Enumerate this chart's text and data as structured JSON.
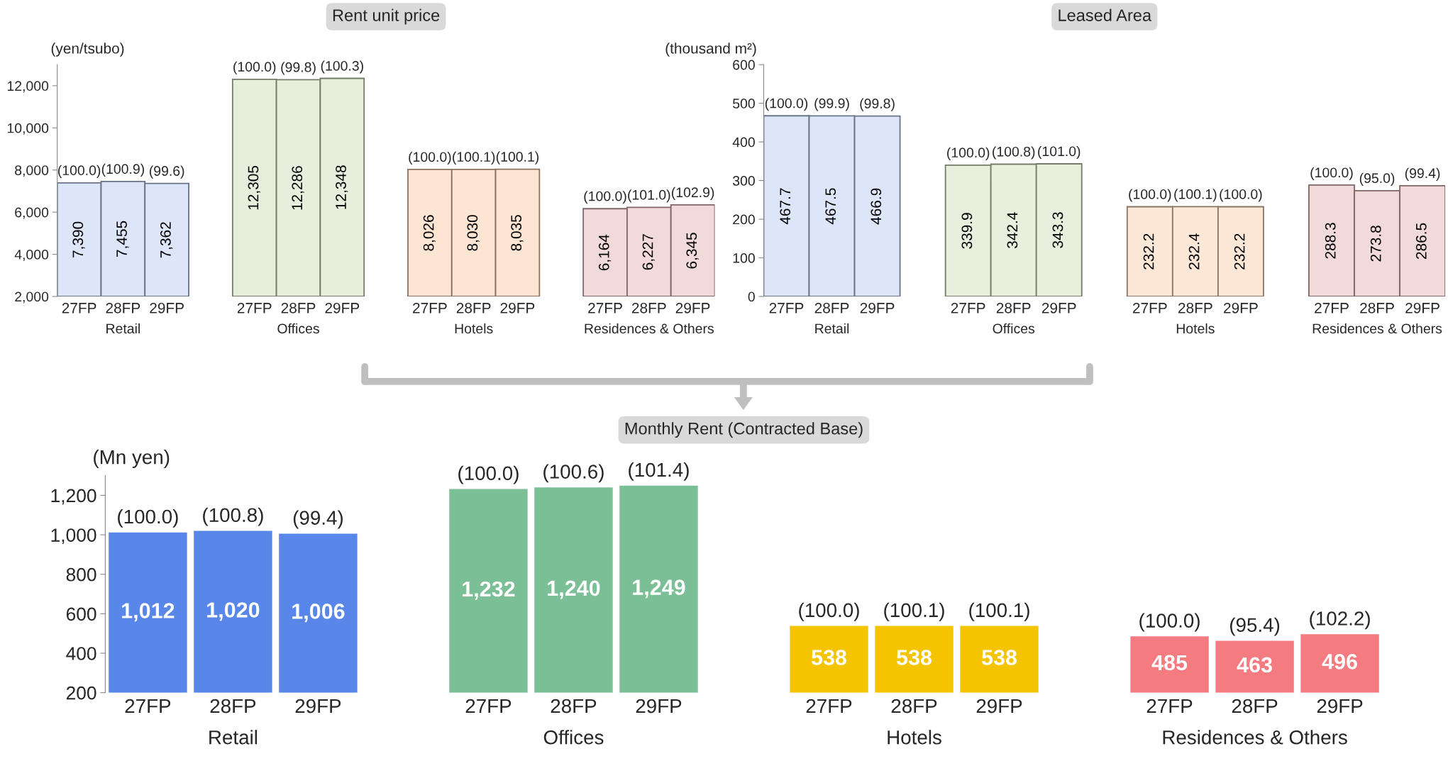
{
  "chart_data": [
    {
      "type": "bar",
      "title": "Rent unit price",
      "ylabel": "(yen/tsubo)",
      "categories": [
        "27FP",
        "28FP",
        "29FP",
        null,
        "27FP",
        "28FP",
        "29FP",
        null,
        "27FP",
        "28FP",
        "29FP",
        null,
        "27FP",
        "28FP",
        "29FP"
      ],
      "ylim": [
        2000,
        13000
      ],
      "yticks": [
        {
          "value": 2000,
          "label": "2,000"
        },
        {
          "value": 4000,
          "label": "4,000"
        },
        {
          "value": 6000,
          "label": "6,000"
        },
        {
          "value": 8000,
          "label": "8,000"
        },
        {
          "value": 10000,
          "label": "10,000"
        },
        {
          "value": 12000,
          "label": "12,000"
        }
      ],
      "series": [
        {
          "name": "Retail",
          "color": "#dde5f9",
          "values": [
            7390,
            7455,
            7362,
            null,
            null,
            null,
            null,
            null,
            null,
            null,
            null,
            null,
            null,
            null,
            null
          ],
          "value_labels": [
            "7,390",
            "7,455",
            "7,362",
            null,
            null,
            null,
            null,
            null,
            null,
            null,
            null,
            null,
            null,
            null,
            null
          ]
        },
        {
          "name": "Offices",
          "color": "#e7efdc",
          "values": [
            null,
            null,
            null,
            null,
            12305,
            12286,
            12348,
            null,
            null,
            null,
            null,
            null,
            null,
            null,
            null
          ],
          "value_labels": [
            null,
            null,
            null,
            null,
            "12,305",
            "12,286",
            "12,348",
            null,
            null,
            null,
            null,
            null,
            null,
            null,
            null
          ]
        },
        {
          "name": "Hotels",
          "color": "#fde5d3",
          "values": [
            null,
            null,
            null,
            null,
            null,
            null,
            null,
            null,
            8026,
            8030,
            8035,
            null,
            null,
            null,
            null
          ],
          "value_labels": [
            null,
            null,
            null,
            null,
            null,
            null,
            null,
            null,
            "8,026",
            "8,030",
            "8,035",
            null,
            null,
            null,
            null
          ]
        },
        {
          "name": "Residences & Others",
          "color": "#f2d9da",
          "values": [
            null,
            null,
            null,
            null,
            null,
            null,
            null,
            null,
            null,
            null,
            null,
            null,
            6164,
            6227,
            6345
          ],
          "value_labels": [
            null,
            null,
            null,
            null,
            null,
            null,
            null,
            null,
            null,
            null,
            null,
            null,
            "6,164",
            "6,227",
            "6,345"
          ]
        }
      ],
      "annotations": [
        "(100.0)",
        "(100.9)",
        "(99.6)",
        "(100.0)",
        "(99.8)",
        "(100.3)",
        "(100.0)",
        "(100.1)",
        "(100.1)",
        "(100.0)",
        "(101.0)",
        "(102.9)"
      ]
    },
    {
      "type": "bar",
      "title": "Leased Area",
      "ylabel": "(thousand m²)",
      "categories": [
        "27FP",
        "28FP",
        "29FP",
        null,
        "27FP",
        "28FP",
        "29FP",
        null,
        "27FP",
        "28FP",
        "29FP",
        null,
        "27FP",
        "28FP",
        "29FP"
      ],
      "ylim": [
        0,
        600
      ],
      "yticks": [
        0,
        100,
        200,
        300,
        400,
        500,
        600
      ],
      "series": [
        {
          "name": "Retail",
          "color": "#dde5f9",
          "values": [
            467.7,
            467.5,
            466.9,
            null,
            null,
            null,
            null,
            null,
            null,
            null,
            null,
            null,
            null,
            null,
            null
          ],
          "value_labels": [
            "467.7",
            "467.5",
            "466.9",
            null,
            null,
            null,
            null,
            null,
            null,
            null,
            null,
            null,
            null,
            null,
            null
          ]
        },
        {
          "name": "Offices",
          "color": "#e9efdd",
          "values": [
            null,
            null,
            null,
            null,
            339.9,
            342.4,
            343.3,
            null,
            null,
            null,
            null,
            null,
            null,
            null,
            null
          ],
          "value_labels": [
            null,
            null,
            null,
            null,
            "339.9",
            "342.4",
            "343.3",
            null,
            null,
            null,
            null,
            null,
            null,
            null,
            null
          ]
        },
        {
          "name": "Hotels",
          "color": "#fde8d8",
          "values": [
            null,
            null,
            null,
            null,
            null,
            null,
            null,
            null,
            232.2,
            232.4,
            232.2,
            null,
            null,
            null,
            null
          ],
          "value_labels": [
            null,
            null,
            null,
            null,
            null,
            null,
            null,
            null,
            "232.2",
            "232.4",
            "232.2",
            null,
            null,
            null,
            null
          ]
        },
        {
          "name": "Residences & Others",
          "color": "#f2d9da",
          "values": [
            null,
            null,
            null,
            null,
            null,
            null,
            null,
            null,
            null,
            null,
            null,
            null,
            288.3,
            273.8,
            286.5
          ],
          "value_labels": [
            null,
            null,
            null,
            null,
            null,
            null,
            null,
            null,
            null,
            null,
            null,
            null,
            "288.3",
            "273.8",
            "286.5"
          ]
        }
      ],
      "annotations": [
        "(100.0)",
        "(99.9)",
        "(99.8)",
        "(100.0)",
        "(100.8)",
        "(101.0)",
        "(100.0)",
        "(100.1)",
        "(100.0)",
        "(100.0)",
        "(95.0)",
        "(99.4)"
      ]
    },
    {
      "type": "bar",
      "title": "Monthly Rent (Contracted Base)",
      "ylabel": "(Mn yen)",
      "categories": [
        "27FP",
        "28FP",
        "29FP",
        null,
        "27FP",
        "28FP",
        "29FP",
        null,
        "27FP",
        "28FP",
        "29FP",
        null,
        "27FP",
        "28FP",
        "29FP"
      ],
      "ylim": [
        200,
        1300
      ],
      "yticks": [
        {
          "value": 200,
          "label": "200"
        },
        {
          "value": 400,
          "label": "400"
        },
        {
          "value": 600,
          "label": "600"
        },
        {
          "value": 800,
          "label": "800"
        },
        {
          "value": 1000,
          "label": "1,000"
        },
        {
          "value": 1200,
          "label": "1,200"
        }
      ],
      "series": [
        {
          "name": "Retail",
          "color": "#5886e9",
          "values": [
            1012,
            1020,
            1006,
            null,
            null,
            null,
            null,
            null,
            null,
            null,
            null,
            null,
            null,
            null,
            null
          ],
          "value_labels": [
            "1,012",
            "1,020",
            "1,006",
            null,
            null,
            null,
            null,
            null,
            null,
            null,
            null,
            null,
            null,
            null,
            null
          ]
        },
        {
          "name": "Offices",
          "color": "#7bbf96",
          "values": [
            null,
            null,
            null,
            null,
            1232,
            1240,
            1249,
            null,
            null,
            null,
            null,
            null,
            null,
            null,
            null
          ],
          "value_labels": [
            null,
            null,
            null,
            null,
            "1,232",
            "1,240",
            "1,249",
            null,
            null,
            null,
            null,
            null,
            null,
            null,
            null
          ]
        },
        {
          "name": "Hotels",
          "color": "#f5c400",
          "values": [
            null,
            null,
            null,
            null,
            null,
            null,
            null,
            null,
            538,
            538,
            538,
            null,
            null,
            null,
            null
          ],
          "value_labels": [
            null,
            null,
            null,
            null,
            null,
            null,
            null,
            null,
            "538",
            "538",
            "538",
            null,
            null,
            null,
            null
          ]
        },
        {
          "name": "Residences & Others",
          "color": "#f47b80",
          "values": [
            null,
            null,
            null,
            null,
            null,
            null,
            null,
            null,
            null,
            null,
            null,
            null,
            485,
            463,
            496
          ],
          "value_labels": [
            null,
            null,
            null,
            null,
            null,
            null,
            null,
            null,
            null,
            null,
            null,
            null,
            "485",
            "463",
            "496"
          ]
        }
      ],
      "annotations": [
        "(100.0)",
        "(100.8)",
        "(99.4)",
        "(100.0)",
        "(100.6)",
        "(101.4)",
        "(100.0)",
        "(100.1)",
        "(100.1)",
        "(100.0)",
        "(95.4)",
        "(102.2)"
      ]
    }
  ]
}
